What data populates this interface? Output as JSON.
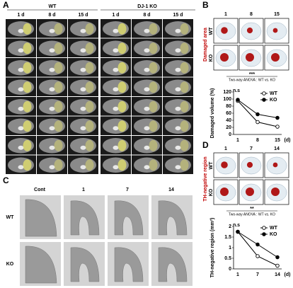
{
  "panel_a": {
    "label": "A",
    "groups": [
      "WT",
      "DJ-1 KO"
    ],
    "days": [
      "1 d",
      "8 d",
      "15 d",
      "1 d",
      "8 d",
      "15 d"
    ]
  },
  "panel_b": {
    "label": "B",
    "columns": [
      "1",
      "8",
      "15"
    ],
    "rows": [
      "WT",
      "KO"
    ],
    "side_label": "Damaged area",
    "significance": "***",
    "test": "Two-way ANOVA : WT vs. KO"
  },
  "panel_c": {
    "label": "C",
    "columns": [
      "Cont",
      "1",
      "7",
      "14"
    ],
    "rows": [
      "WT",
      "KO"
    ]
  },
  "panel_d": {
    "label": "D",
    "columns": [
      "1",
      "7",
      "14"
    ],
    "rows": [
      "WT",
      "KO"
    ],
    "side_label": "TH-negative region",
    "significance": "**",
    "test": "Two-way ANOVA : WT vs. KO"
  },
  "chart_data": [
    {
      "type": "line",
      "y_label": "Damaged volume (%)",
      "categories": [
        "1",
        "8",
        "15"
      ],
      "x_unit": "(d)",
      "annotation": "n.s",
      "ylim": [
        0,
        120
      ],
      "yticks": [
        0,
        20,
        40,
        60,
        80,
        100,
        120
      ],
      "series": [
        {
          "name": "WT",
          "color": "#000000",
          "marker": "open",
          "values": [
            95,
            35,
            22
          ]
        },
        {
          "name": "KO",
          "color": "#000000",
          "marker": "filled",
          "values": [
            98,
            57,
            47
          ]
        }
      ]
    },
    {
      "type": "line",
      "y_label": "TH-negative region (mm²)",
      "categories": [
        "1",
        "7",
        "14"
      ],
      "x_unit": "(d)",
      "annotation": "n.s",
      "ylim": [
        0,
        2
      ],
      "yticks": [
        0,
        0.5,
        1,
        1.5,
        2
      ],
      "series": [
        {
          "name": "WT",
          "color": "#000000",
          "marker": "open",
          "values": [
            1.75,
            0.6,
            0.15
          ]
        },
        {
          "name": "KO",
          "color": "#000000",
          "marker": "filled",
          "values": [
            1.75,
            1.15,
            0.55
          ]
        }
      ]
    }
  ]
}
